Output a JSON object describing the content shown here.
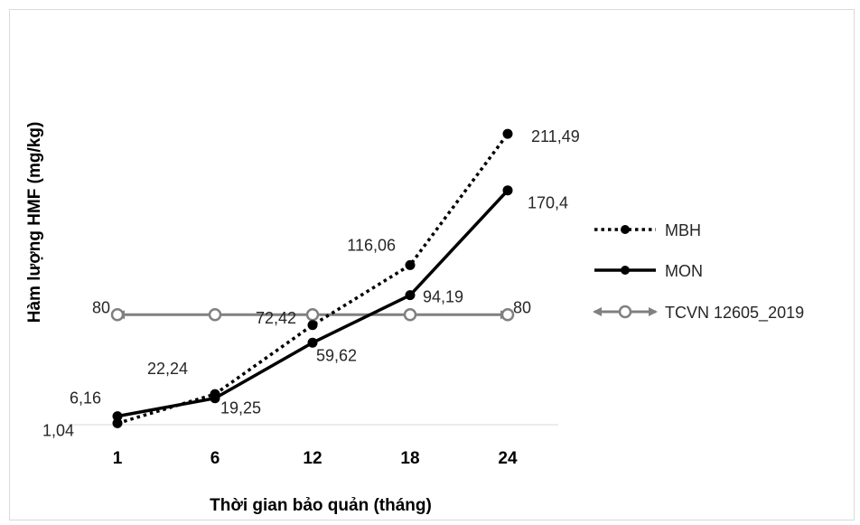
{
  "chart_data": {
    "type": "line",
    "title": "",
    "xlabel": "Thời gian bảo quản (tháng)",
    "ylabel": "Hàm lượng HMF  (mg/kg)",
    "categories": [
      "1",
      "6",
      "12",
      "18",
      "24"
    ],
    "ylim": [
      0,
      230
    ],
    "grid": false,
    "legend_position": "right",
    "series": [
      {
        "name": "MBH",
        "values": [
          1.04,
          22.24,
          72.42,
          116.06,
          211.49
        ],
        "labels": [
          "1,04",
          "22,24",
          "72,42",
          "116,06",
          "211,49"
        ],
        "style": "dotted",
        "color": "#000000"
      },
      {
        "name": "MON",
        "values": [
          6.16,
          19.25,
          59.62,
          94.19,
          170.4
        ],
        "labels": [
          "6,16",
          "19,25",
          "59,62",
          "94,19",
          "170,4"
        ],
        "style": "solid",
        "color": "#000000"
      },
      {
        "name": "TCVN 12605_2019",
        "values": [
          80,
          80,
          80,
          80,
          80
        ],
        "labels": [
          "80",
          "",
          "",
          "",
          "80"
        ],
        "style": "solid-arrows",
        "color": "#808080"
      }
    ]
  }
}
